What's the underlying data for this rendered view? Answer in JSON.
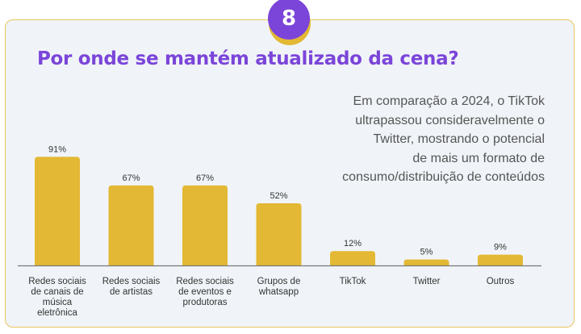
{
  "badge": "8",
  "title": "Por onde se mantém atualizado da cena?",
  "subtitle_lines": [
    "Em comparação a 2024, o TikTok",
    "ultrapassou consideravelmente o",
    "Twitter, mostrando o potencial",
    "de mais um formato de",
    "consumo/distribuição de conteúdos"
  ],
  "colors": {
    "accent": "#7b45d9",
    "bar": "#e3b834",
    "background": "#f0f4f8"
  },
  "chart_data": {
    "type": "bar",
    "title": "Por onde se mantém atualizado da cena?",
    "categories": [
      [
        "Redes sociais",
        "de canais de",
        "música",
        "eletrônica"
      ],
      [
        "Redes sociais",
        "de artistas"
      ],
      [
        "Redes sociais",
        "de eventos e",
        "produtoras"
      ],
      [
        "Grupos de",
        "whatsapp"
      ],
      [
        "TikTok"
      ],
      [
        "Twitter"
      ],
      [
        "Outros"
      ]
    ],
    "values": [
      91,
      67,
      67,
      52,
      12,
      5,
      9
    ],
    "value_labels": [
      "91%",
      "67%",
      "67%",
      "52%",
      "12%",
      "5%",
      "9%"
    ],
    "ylim": [
      0,
      100
    ],
    "grid": false
  }
}
